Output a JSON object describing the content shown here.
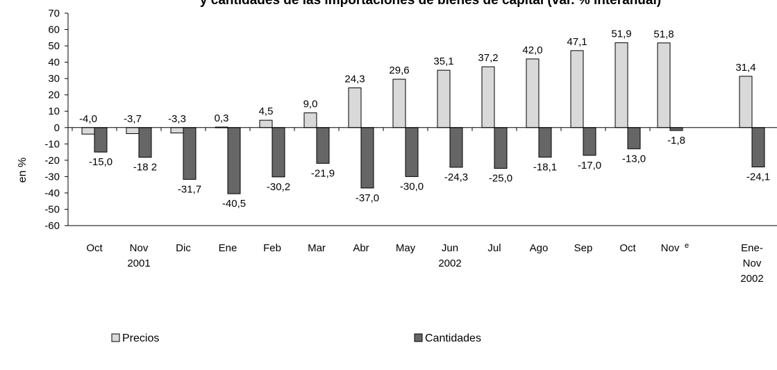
{
  "chart_data": {
    "type": "bar",
    "title": "y cantidades de las importaciones de bienes de capital (var. % interanual)",
    "ylabel": "en %",
    "ylim": [
      -60,
      70
    ],
    "yticks": [
      70,
      60,
      50,
      40,
      30,
      20,
      10,
      0,
      -10,
      -20,
      -30,
      -40,
      -50,
      -60
    ],
    "categories": [
      {
        "lines": [
          "Oct"
        ]
      },
      {
        "lines": [
          "Nov",
          "2001"
        ]
      },
      {
        "lines": [
          "Dic"
        ]
      },
      {
        "lines": [
          "Ene"
        ]
      },
      {
        "lines": [
          "Feb"
        ]
      },
      {
        "lines": [
          "Mar"
        ]
      },
      {
        "lines": [
          "Abr"
        ]
      },
      {
        "lines": [
          "May"
        ]
      },
      {
        "lines": [
          "Jun",
          "2002"
        ]
      },
      {
        "lines": [
          "Jul"
        ]
      },
      {
        "lines": [
          "Ago"
        ]
      },
      {
        "lines": [
          "Sep"
        ]
      },
      {
        "lines": [
          "Oct"
        ]
      },
      {
        "lines": [
          "Nov"
        ],
        "sup": "e"
      },
      {
        "lines": [
          "Ene-",
          "Nov",
          "2002"
        ]
      }
    ],
    "series": [
      {
        "name": "Precios",
        "color": "#d9d9d9",
        "values": [
          -4.0,
          -3.7,
          -3.3,
          0.3,
          4.5,
          9.0,
          24.3,
          29.6,
          35.1,
          37.2,
          42.0,
          47.1,
          51.9,
          51.8,
          31.4
        ],
        "labels": [
          "-4,0",
          "-3,7",
          "-3,3",
          "0,3",
          "4,5",
          "9,0",
          "24,3",
          "29,6",
          "35,1",
          "37,2",
          "42,0",
          "47,1",
          "51,9",
          "51,8",
          "31,4"
        ]
      },
      {
        "name": "Cantidades",
        "color": "#666666",
        "values": [
          -15.0,
          -18.2,
          -31.7,
          -40.5,
          -30.2,
          -21.9,
          -37.0,
          -30.0,
          -24.3,
          -25.0,
          -18.1,
          -17.0,
          -13.0,
          -1.8,
          -24.1
        ],
        "labels": [
          "-15,0",
          "-18 2",
          "-31,7",
          "-40,5",
          "-30,2",
          "-21,9",
          "-37,0",
          "-30,0",
          "-24,3",
          "-25,0",
          "-18,1",
          "-17,0",
          "-13,0",
          "-1,8",
          "-24,1"
        ]
      }
    ],
    "legend": {
      "position": "bottom"
    },
    "grid": false
  }
}
